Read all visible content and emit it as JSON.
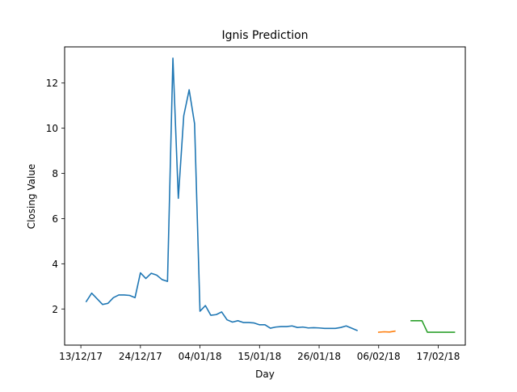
{
  "chart_data": {
    "type": "line",
    "title": "Ignis Prediction",
    "xlabel": "Day",
    "ylabel": "Closing Value",
    "xlim": [
      "2017-12-10",
      "2018-02-22"
    ],
    "ylim": [
      0.4,
      13.6
    ],
    "yticks": [
      2,
      4,
      6,
      8,
      10,
      12
    ],
    "xticks": [
      {
        "date": "2017-12-13",
        "label": "13/12/17"
      },
      {
        "date": "2017-12-24",
        "label": "24/12/17"
      },
      {
        "date": "2018-01-04",
        "label": "04/01/18"
      },
      {
        "date": "2018-01-15",
        "label": "15/01/18"
      },
      {
        "date": "2018-01-26",
        "label": "26/01/18"
      },
      {
        "date": "2018-02-06",
        "label": "06/02/18"
      },
      {
        "date": "2018-02-17",
        "label": "17/02/18"
      }
    ],
    "grid": false,
    "series": [
      {
        "color": "#1f77b4",
        "x": [
          "2017-12-14",
          "2017-12-15",
          "2017-12-16",
          "2017-12-17",
          "2017-12-18",
          "2017-12-19",
          "2017-12-20",
          "2017-12-21",
          "2017-12-22",
          "2017-12-23",
          "2017-12-24",
          "2017-12-25",
          "2017-12-26",
          "2017-12-27",
          "2017-12-28",
          "2017-12-29",
          "2017-12-30",
          "2017-12-31",
          "2018-01-01",
          "2018-01-02",
          "2018-01-03",
          "2018-01-04",
          "2018-01-05",
          "2018-01-06",
          "2018-01-07",
          "2018-01-08",
          "2018-01-09",
          "2018-01-10",
          "2018-01-11",
          "2018-01-12",
          "2018-01-13",
          "2018-01-14",
          "2018-01-15",
          "2018-01-16",
          "2018-01-17",
          "2018-01-18",
          "2018-01-19",
          "2018-01-20",
          "2018-01-21",
          "2018-01-22",
          "2018-01-23",
          "2018-01-24",
          "2018-01-25",
          "2018-01-26",
          "2018-01-27",
          "2018-01-28",
          "2018-01-29",
          "2018-01-30",
          "2018-01-31",
          "2018-02-01",
          "2018-02-02"
        ],
        "values": [
          2.33,
          2.7,
          2.45,
          2.2,
          2.25,
          2.5,
          2.62,
          2.62,
          2.6,
          2.5,
          3.6,
          3.35,
          3.58,
          3.5,
          3.3,
          3.22,
          13.1,
          6.9,
          10.55,
          11.7,
          10.2,
          1.9,
          2.15,
          1.72,
          1.75,
          1.87,
          1.52,
          1.42,
          1.48,
          1.4,
          1.4,
          1.38,
          1.3,
          1.3,
          1.15,
          1.2,
          1.22,
          1.22,
          1.25,
          1.18,
          1.2,
          1.16,
          1.17,
          1.16,
          1.14,
          1.14,
          1.14,
          1.18,
          1.25,
          1.15,
          1.05
        ]
      },
      {
        "color": "#ff7f0e",
        "x": [
          "2018-02-06",
          "2018-02-07",
          "2018-02-08",
          "2018-02-09"
        ],
        "values": [
          0.97,
          0.99,
          0.98,
          1.02
        ]
      },
      {
        "color": "#2ca02c",
        "x": [
          "2018-02-12",
          "2018-02-13",
          "2018-02-14",
          "2018-02-15",
          "2018-02-16",
          "2018-02-17",
          "2018-02-18",
          "2018-02-19",
          "2018-02-20"
        ],
        "values": [
          1.48,
          1.48,
          1.48,
          0.97,
          0.97,
          0.97,
          0.97,
          0.97,
          0.97
        ]
      }
    ]
  }
}
